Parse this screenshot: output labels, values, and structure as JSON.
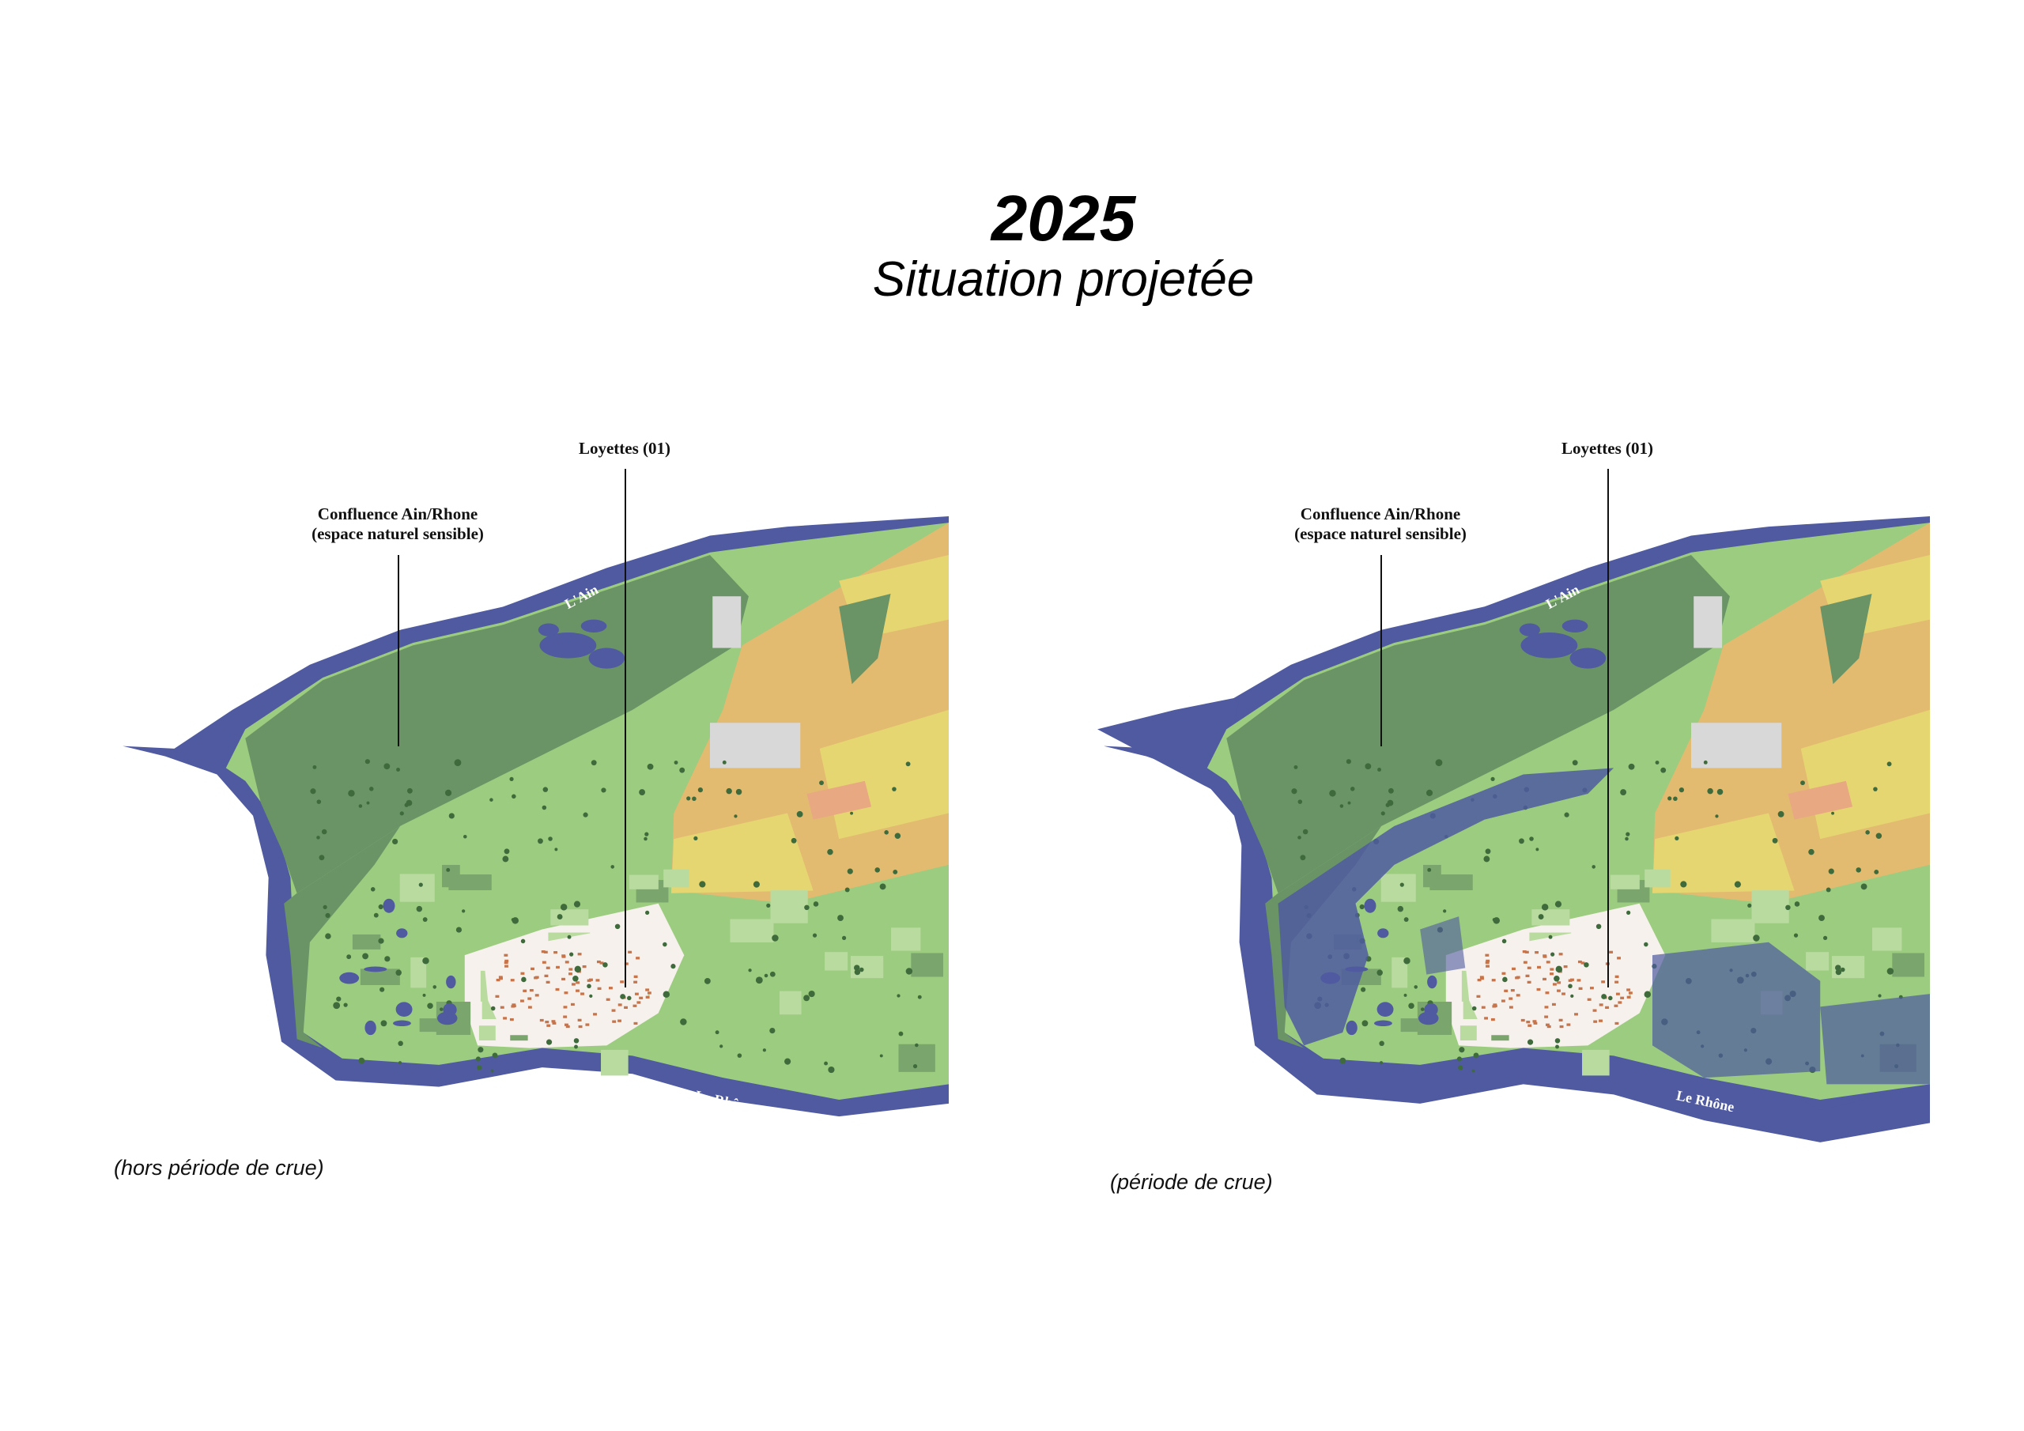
{
  "header": {
    "year": "2025",
    "subtitle": "Situation projetée"
  },
  "maps": [
    {
      "caption": "(hors période de crue)",
      "label_town": "Loyettes (01)",
      "label_conf_1": "Confluence Ain/Rhone",
      "label_conf_2": "(espace naturel sensible)",
      "river_ain": "L'Ain",
      "river_rhone": "Le Rhône",
      "flooded": false
    },
    {
      "caption": "(période de crue)",
      "label_town": "Loyettes (01)",
      "label_conf_1": "Confluence Ain/Rhone",
      "label_conf_2": "(espace naturel sensible)",
      "river_ain": "L'Ain",
      "river_rhone": "Le Rhône",
      "flooded": true
    }
  ],
  "colors": {
    "water": "#4f5aa0",
    "forest": "#6a9466",
    "meadow": "#9ccc7f",
    "field_orange": "#e2bb70",
    "field_yellow": "#e6d672",
    "field_salmon": "#e8a882",
    "town": "#f6f1ec",
    "roofs": "#c8744a"
  }
}
